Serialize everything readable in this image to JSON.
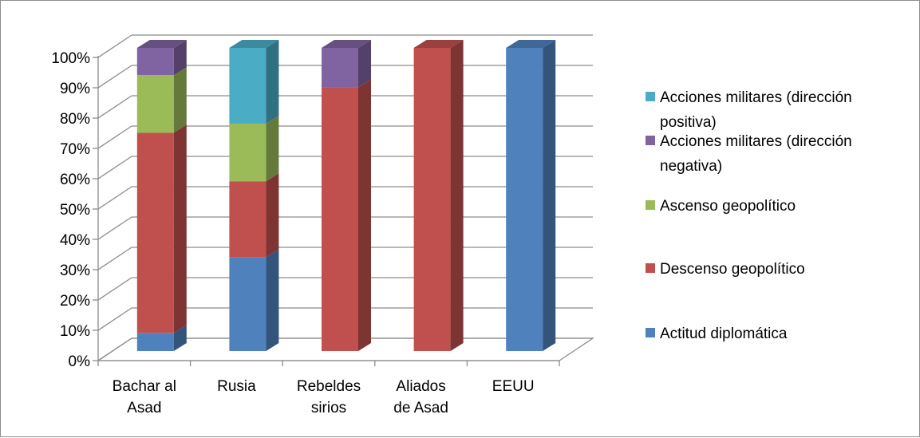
{
  "chart_data": {
    "type": "bar",
    "stacked": true,
    "normalized_percent": true,
    "three_d": true,
    "categories": [
      [
        "Bachar al",
        "Asad"
      ],
      [
        "Rusia"
      ],
      [
        "Rebeldes",
        "sirios"
      ],
      [
        "Aliados",
        "de Asad"
      ],
      [
        "EEUU"
      ]
    ],
    "series": [
      {
        "name": "Acciones militares (dirección positiva)",
        "color": "#4F81BD",
        "values": [
          6,
          31,
          0,
          0,
          100
        ]
      },
      {
        "name": "Acciones militares (dirección negativa)",
        "color": "#C0504D",
        "values": [
          66,
          25,
          87,
          100,
          0
        ]
      },
      {
        "name": "Ascenso geopolítico",
        "color": "#9BBB59",
        "values": [
          19,
          19,
          0,
          0,
          0
        ]
      },
      {
        "name": "Descenso geopolítico",
        "color": "#8064A2",
        "values": [
          9,
          0,
          13,
          0,
          0
        ]
      },
      {
        "name": "Actitud diplomática",
        "color": "#4BACC6",
        "values": [
          0,
          25,
          0,
          0,
          0
        ]
      }
    ],
    "y_ticks": [
      "0%",
      "10%",
      "20%",
      "30%",
      "40%",
      "50%",
      "60%",
      "70%",
      "80%",
      "90%",
      "100%"
    ],
    "ylim": [
      0,
      100
    ],
    "grid": true,
    "legend_position": "right",
    "legend_order": [
      4,
      3,
      2,
      1,
      0
    ],
    "legend_labels": [
      [
        "Actitud diplomática"
      ],
      [
        "Descenso geopolítico"
      ],
      [
        "Ascenso geopolítico"
      ],
      [
        "Acciones militares (dirección",
        "negativa)"
      ],
      [
        "Acciones militares (dirección",
        "positiva)"
      ]
    ]
  }
}
